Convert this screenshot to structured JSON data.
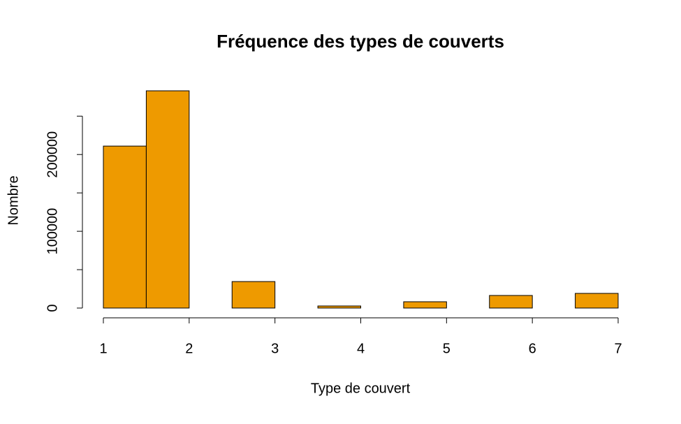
{
  "chart_data": {
    "type": "histogram",
    "title": "Fréquence des types de couverts",
    "x_label": "Type de couvert",
    "y_label": "Nombre",
    "bins": [
      1,
      1.5,
      2,
      2.5,
      3,
      3.5,
      4,
      4.5,
      5,
      5.5,
      6,
      6.5,
      7
    ],
    "counts": [
      211000,
      283000,
      0,
      34500,
      0,
      2700,
      0,
      8200,
      0,
      16400,
      0,
      19100
    ],
    "color": "#EE9A00",
    "xlim": [
      1,
      7
    ],
    "xticks": [
      1,
      2,
      3,
      4,
      5,
      6,
      7
    ],
    "ylim": [
      0,
      283000
    ],
    "yticks": [
      0,
      100000,
      200000
    ],
    "yminor_ticks": [
      50000,
      150000,
      250000
    ]
  }
}
